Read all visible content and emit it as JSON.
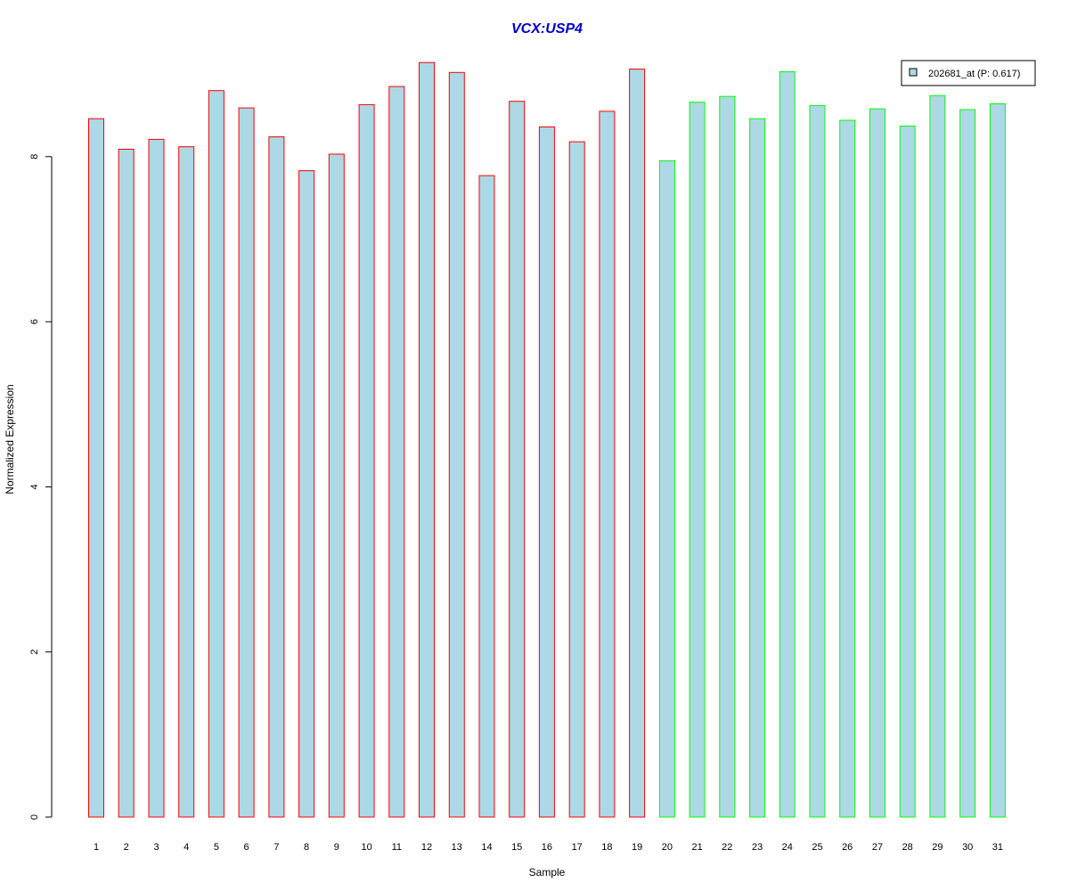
{
  "chart_data": {
    "type": "bar",
    "title": "VCX:USP4",
    "title_color": "#0000CC",
    "xlabel": "Sample",
    "ylabel": "Normalized Expression",
    "ylim": [
      0,
      9.25
    ],
    "yticks": [
      0,
      2,
      4,
      6,
      8
    ],
    "grid": false,
    "legend_position": "top-right",
    "fill_color": "#ADD8E6",
    "categories": [
      "1",
      "2",
      "3",
      "4",
      "5",
      "6",
      "7",
      "8",
      "9",
      "10",
      "11",
      "12",
      "13",
      "14",
      "15",
      "16",
      "17",
      "18",
      "19",
      "20",
      "21",
      "22",
      "23",
      "24",
      "25",
      "26",
      "27",
      "28",
      "29",
      "30",
      "31"
    ],
    "series": [
      {
        "name": "202681_at (P: 0.617)",
        "values": [
          8.46,
          8.09,
          8.21,
          8.12,
          8.8,
          8.59,
          8.24,
          7.83,
          8.03,
          8.63,
          8.85,
          9.14,
          9.02,
          7.77,
          8.67,
          8.36,
          8.18,
          8.55,
          9.06,
          7.95,
          8.66,
          8.73,
          8.46,
          9.03,
          8.62,
          8.44,
          8.58,
          8.37,
          8.74,
          8.57,
          8.64
        ]
      }
    ],
    "border_colors": [
      "#FF0000",
      "#FF0000",
      "#FF0000",
      "#FF0000",
      "#FF0000",
      "#FF0000",
      "#FF0000",
      "#FF0000",
      "#FF0000",
      "#FF0000",
      "#FF0000",
      "#FF0000",
      "#FF0000",
      "#FF0000",
      "#FF0000",
      "#FF0000",
      "#FF0000",
      "#FF0000",
      "#FF0000",
      "#00FF00",
      "#00FF00",
      "#00FF00",
      "#00FF00",
      "#00FF00",
      "#00FF00",
      "#00FF00",
      "#00FF00",
      "#00FF00",
      "#00FF00",
      "#00FF00",
      "#00FF00"
    ]
  }
}
